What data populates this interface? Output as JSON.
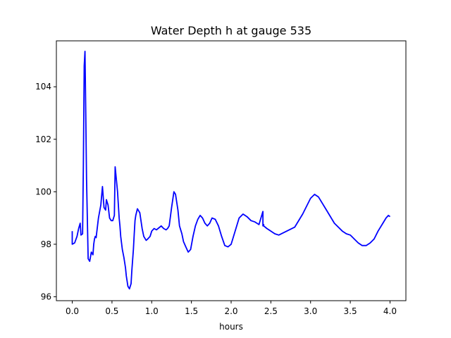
{
  "chart_data": {
    "type": "line",
    "title": "Water Depth h at gauge 535",
    "xlabel": "hours",
    "ylabel": "",
    "xlim": [
      -0.2,
      4.2
    ],
    "ylim": [
      95.85,
      105.75
    ],
    "xticks": [
      0.0,
      0.5,
      1.0,
      1.5,
      2.0,
      2.5,
      3.0,
      3.5,
      4.0
    ],
    "xtick_labels": [
      "0.0",
      "0.5",
      "1.0",
      "1.5",
      "2.0",
      "2.5",
      "3.0",
      "3.5",
      "4.0"
    ],
    "yticks": [
      96,
      98,
      100,
      102,
      104
    ],
    "ytick_labels": [
      "96",
      "98",
      "100",
      "102",
      "104"
    ],
    "grid": false,
    "color": "#0000ff",
    "series": [
      {
        "x": [
          0.0,
          0.0,
          0.03,
          0.06,
          0.08,
          0.1,
          0.11,
          0.13,
          0.14,
          0.15,
          0.16,
          0.17,
          0.18,
          0.2,
          0.22,
          0.24,
          0.26,
          0.27,
          0.28,
          0.29,
          0.3,
          0.33,
          0.36,
          0.38,
          0.4,
          0.42,
          0.43,
          0.44,
          0.45,
          0.47,
          0.49,
          0.51,
          0.53,
          0.54,
          0.57,
          0.59,
          0.6,
          0.61,
          0.63,
          0.65,
          0.67,
          0.68,
          0.7,
          0.72,
          0.74,
          0.75,
          0.77,
          0.78,
          0.79,
          0.8,
          0.82,
          0.85,
          0.88,
          0.9,
          0.93,
          0.95,
          0.98,
          1.0,
          1.03,
          1.06,
          1.08,
          1.12,
          1.15,
          1.18,
          1.2,
          1.22,
          1.25,
          1.28,
          1.3,
          1.33,
          1.35,
          1.38,
          1.4,
          1.43,
          1.46,
          1.49,
          1.52,
          1.55,
          1.58,
          1.61,
          1.64,
          1.67,
          1.7,
          1.73,
          1.76,
          1.8,
          1.84,
          1.88,
          1.92,
          1.96,
          2.0,
          2.03,
          2.06,
          2.1,
          2.15,
          2.2,
          2.25,
          2.3,
          2.35,
          2.4,
          2.4,
          2.41,
          2.41,
          2.45,
          2.5,
          2.55,
          2.6,
          2.7,
          2.8,
          2.9,
          3.0,
          3.05,
          3.1,
          3.2,
          3.3,
          3.4,
          3.45,
          3.5,
          3.55,
          3.6,
          3.65,
          3.7,
          3.75,
          3.8,
          3.85,
          3.9,
          3.95,
          3.98,
          4.0
        ],
        "y": [
          98.5,
          98.0,
          98.05,
          98.3,
          98.6,
          98.8,
          98.35,
          98.4,
          101.0,
          104.8,
          105.35,
          103.0,
          100.5,
          97.45,
          97.35,
          97.7,
          97.6,
          98.0,
          98.2,
          98.3,
          98.25,
          99.0,
          99.5,
          100.2,
          99.4,
          99.3,
          99.7,
          99.6,
          99.5,
          99.0,
          98.9,
          98.9,
          99.1,
          100.95,
          100.0,
          99.0,
          98.7,
          98.3,
          97.8,
          97.5,
          97.1,
          96.8,
          96.4,
          96.3,
          96.5,
          97.0,
          97.8,
          98.4,
          98.9,
          99.1,
          99.35,
          99.2,
          98.6,
          98.3,
          98.15,
          98.2,
          98.3,
          98.5,
          98.6,
          98.55,
          98.6,
          98.7,
          98.6,
          98.55,
          98.6,
          98.7,
          99.4,
          100.0,
          99.9,
          99.3,
          98.7,
          98.4,
          98.1,
          97.9,
          97.7,
          97.8,
          98.3,
          98.7,
          98.95,
          99.1,
          99.0,
          98.8,
          98.7,
          98.8,
          99.0,
          98.95,
          98.7,
          98.3,
          97.95,
          97.9,
          98.0,
          98.3,
          98.6,
          99.0,
          99.15,
          99.05,
          98.9,
          98.85,
          98.75,
          99.25,
          98.7,
          98.75,
          98.7,
          98.6,
          98.5,
          98.4,
          98.35,
          98.5,
          98.65,
          99.15,
          99.75,
          99.9,
          99.8,
          99.3,
          98.8,
          98.5,
          98.4,
          98.35,
          98.2,
          98.05,
          97.95,
          97.95,
          98.05,
          98.2,
          98.5,
          98.75,
          99.0,
          99.1,
          99.05
        ]
      }
    ]
  }
}
